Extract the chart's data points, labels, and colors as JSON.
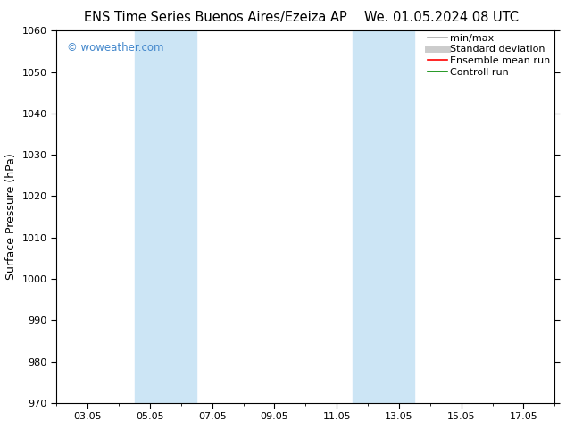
{
  "title_left": "ENS Time Series Buenos Aires/Ezeiza AP",
  "title_right": "We. 01.05.2024 08 UTC",
  "ylabel": "Surface Pressure (hPa)",
  "ylim": [
    970,
    1060
  ],
  "yticks": [
    970,
    980,
    990,
    1000,
    1010,
    1020,
    1030,
    1040,
    1050,
    1060
  ],
  "xtick_labels": [
    "03.05",
    "05.05",
    "07.05",
    "09.05",
    "11.05",
    "13.05",
    "15.05",
    "17.05"
  ],
  "xtick_positions": [
    2,
    4,
    6,
    8,
    10,
    12,
    14,
    16
  ],
  "xlim": [
    1,
    17
  ],
  "shaded_regions": [
    {
      "x_start": 3.5,
      "x_end": 5.5,
      "color": "#cce5f5"
    },
    {
      "x_start": 10.5,
      "x_end": 12.5,
      "color": "#cce5f5"
    }
  ],
  "watermark_text": "© woweather.com",
  "watermark_color": "#4488cc",
  "legend_items": [
    {
      "label": "min/max",
      "color": "#aaaaaa",
      "lw": 1.2
    },
    {
      "label": "Standard deviation",
      "color": "#cccccc",
      "lw": 5
    },
    {
      "label": "Ensemble mean run",
      "color": "#ff0000",
      "lw": 1.2
    },
    {
      "label": "Controll run",
      "color": "#008800",
      "lw": 1.2
    }
  ],
  "bg_color": "#ffffff",
  "title_fontsize": 10.5,
  "tick_fontsize": 8,
  "ylabel_fontsize": 9,
  "legend_fontsize": 8
}
